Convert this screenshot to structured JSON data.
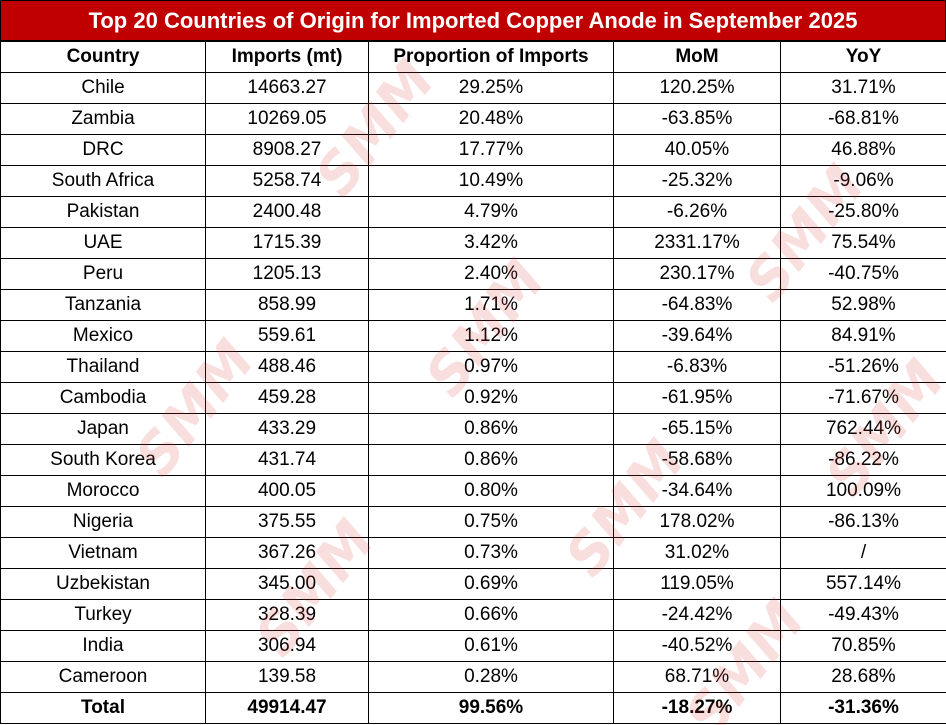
{
  "chart_data": {
    "type": "table",
    "title": "Top 20 Countries of Origin for Imported Copper Anode in September 2025",
    "columns": [
      "Country",
      "Imports (mt)",
      "Proportion of Imports",
      "MoM",
      "YoY"
    ],
    "rows": [
      [
        "Chile",
        "14663.27",
        "29.25%",
        "120.25%",
        "31.71%"
      ],
      [
        "Zambia",
        "10269.05",
        "20.48%",
        "-63.85%",
        "-68.81%"
      ],
      [
        "DRC",
        "8908.27",
        "17.77%",
        "40.05%",
        "46.88%"
      ],
      [
        "South Africa",
        "5258.74",
        "10.49%",
        "-25.32%",
        "-9.06%"
      ],
      [
        "Pakistan",
        "2400.48",
        "4.79%",
        "-6.26%",
        "-25.80%"
      ],
      [
        "UAE",
        "1715.39",
        "3.42%",
        "2331.17%",
        "75.54%"
      ],
      [
        "Peru",
        "1205.13",
        "2.40%",
        "230.17%",
        "-40.75%"
      ],
      [
        "Tanzania",
        "858.99",
        "1.71%",
        "-64.83%",
        "52.98%"
      ],
      [
        "Mexico",
        "559.61",
        "1.12%",
        "-39.64%",
        "84.91%"
      ],
      [
        "Thailand",
        "488.46",
        "0.97%",
        "-6.83%",
        "-51.26%"
      ],
      [
        "Cambodia",
        "459.28",
        "0.92%",
        "-61.95%",
        "-71.67%"
      ],
      [
        "Japan",
        "433.29",
        "0.86%",
        "-65.15%",
        "762.44%"
      ],
      [
        "South Korea",
        "431.74",
        "0.86%",
        "-58.68%",
        "-86.22%"
      ],
      [
        "Morocco",
        "400.05",
        "0.80%",
        "-34.64%",
        "100.09%"
      ],
      [
        "Nigeria",
        "375.55",
        "0.75%",
        "178.02%",
        "-86.13%"
      ],
      [
        "Vietnam",
        "367.26",
        "0.73%",
        "31.02%",
        "/"
      ],
      [
        "Uzbekistan",
        "345.00",
        "0.69%",
        "119.05%",
        "557.14%"
      ],
      [
        "Turkey",
        "328.39",
        "0.66%",
        "-24.42%",
        "-49.43%"
      ],
      [
        "India",
        "306.94",
        "0.61%",
        "-40.52%",
        "70.85%"
      ],
      [
        "Cameroon",
        "139.58",
        "0.28%",
        "68.71%",
        "28.68%"
      ]
    ],
    "total": [
      "Total",
      "49914.47",
      "99.56%",
      "-18.27%",
      "-31.36%"
    ]
  },
  "watermark": {
    "text": "SMM",
    "color": "#e03a3a"
  },
  "colors": {
    "title_bg": "#c00000",
    "title_text": "#ffffff"
  }
}
